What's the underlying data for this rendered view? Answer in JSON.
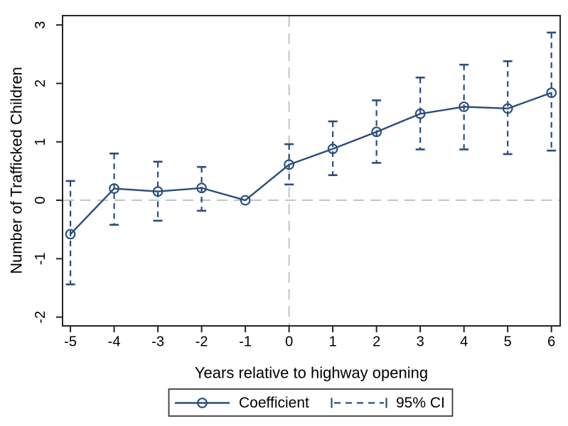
{
  "figure": {
    "background": "#ffffff"
  },
  "chart_data": {
    "type": "line",
    "title": "",
    "xlabel": "Years relative to highway opening",
    "ylabel": "Number of Trafficked Children",
    "x": [
      -5,
      -4,
      -3,
      -2,
      -1,
      0,
      1,
      2,
      3,
      4,
      5,
      6
    ],
    "series": [
      {
        "name": "Coefficient",
        "style": "solid line with open circle markers",
        "values": [
          -0.58,
          0.2,
          0.15,
          0.21,
          0.0,
          0.61,
          0.88,
          1.17,
          1.48,
          1.6,
          1.57,
          1.84
        ]
      },
      {
        "name": "95% CI",
        "style": "dashed vertical error bars with caps",
        "low": [
          -1.44,
          -0.42,
          -0.35,
          -0.18,
          null,
          0.27,
          0.43,
          0.64,
          0.87,
          0.87,
          0.79,
          0.85
        ],
        "high": [
          0.33,
          0.8,
          0.66,
          0.57,
          null,
          0.96,
          1.35,
          1.71,
          2.1,
          2.32,
          2.38,
          2.87
        ]
      }
    ],
    "x_ticks": [
      -5,
      -4,
      -3,
      -2,
      -1,
      0,
      1,
      2,
      3,
      4,
      5,
      6
    ],
    "y_ticks": [
      -2,
      -1,
      0,
      1,
      2,
      3
    ],
    "xlim": [
      -5.18,
      6.2
    ],
    "ylim": [
      -2.15,
      3.16
    ],
    "reference_lines": {
      "y": 0,
      "x": 0
    },
    "grid": false,
    "legend_position": "bottom-center",
    "colors": {
      "series": "#2b4c7d",
      "reference_line": "#c0c6c6",
      "axis": "#242424",
      "legend_border": "#3a3a3a",
      "text": "#000000"
    }
  }
}
